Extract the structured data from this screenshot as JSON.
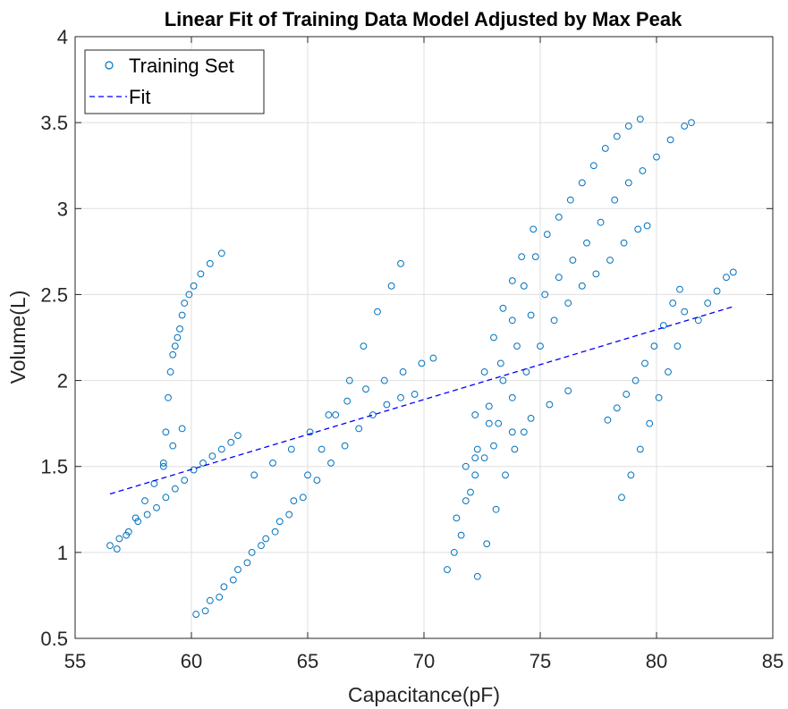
{
  "chart_data": {
    "type": "scatter",
    "title": "Linear Fit of Training Data Model Adjusted by Max Peak",
    "xlabel": "Capacitance(pF)",
    "ylabel": "Volume(L)",
    "xlim": [
      55,
      85
    ],
    "ylim": [
      0.5,
      4
    ],
    "xticks": [
      "55",
      "60",
      "65",
      "70",
      "75",
      "80",
      "85"
    ],
    "yticks": [
      "0.5",
      "1",
      "1.5",
      "2",
      "2.5",
      "3",
      "3.5",
      "4"
    ],
    "grid": true,
    "legend_position": "top-left",
    "colors": {
      "marker": "#0072BD",
      "fit": "#0000FF"
    },
    "series": [
      {
        "name": "Training Set",
        "style": "circle-markers",
        "x": [
          56.5,
          56.9,
          57.3,
          57.7,
          58.1,
          58.5,
          58.9,
          59.3,
          59.7,
          60.1,
          60.5,
          60.9,
          61.3,
          61.7,
          62.0,
          58.8,
          58.9,
          59.0,
          59.1,
          59.2,
          59.3,
          59.4,
          59.5,
          59.6,
          59.7,
          59.9,
          60.1,
          60.4,
          60.8,
          61.3,
          56.8,
          57.2,
          57.6,
          58.0,
          58.4,
          58.8,
          59.2,
          59.6,
          60.2,
          60.8,
          61.4,
          62.0,
          62.6,
          63.2,
          63.8,
          64.4,
          65.0,
          65.6,
          66.2,
          66.8,
          67.4,
          68.0,
          68.6,
          69.0,
          60.6,
          61.2,
          61.8,
          62.4,
          63.0,
          63.6,
          64.2,
          64.8,
          65.4,
          66.0,
          66.6,
          67.2,
          67.8,
          68.4,
          69.0,
          69.6,
          62.7,
          63.5,
          64.3,
          65.1,
          65.9,
          66.7,
          67.5,
          68.3,
          69.1,
          69.9,
          70.4,
          71.0,
          71.4,
          71.8,
          72.2,
          72.6,
          73.0,
          73.4,
          73.8,
          74.2,
          74.7,
          71.3,
          71.8,
          72.3,
          72.8,
          73.3,
          73.8,
          74.3,
          74.8,
          75.3,
          75.8,
          76.3,
          76.8,
          77.3,
          77.8,
          78.3,
          78.8,
          79.3,
          71.6,
          72.2,
          72.8,
          73.4,
          74.0,
          74.6,
          75.2,
          75.8,
          76.4,
          77.0,
          77.6,
          78.2,
          78.8,
          79.4,
          80.0,
          80.6,
          81.2,
          81.5,
          72.0,
          72.6,
          73.2,
          73.8,
          74.4,
          75.0,
          75.6,
          76.2,
          76.8,
          77.4,
          78.0,
          78.6,
          79.2,
          79.6,
          72.3,
          72.7,
          73.1,
          73.5,
          73.9,
          74.3,
          72.2,
          73.0,
          73.8,
          74.6,
          75.4,
          76.2,
          77.9,
          78.3,
          78.7,
          79.1,
          79.5,
          79.9,
          80.3,
          80.7,
          81.0,
          78.5,
          78.9,
          79.3,
          79.7,
          80.1,
          80.5,
          80.9,
          81.2,
          81.8,
          82.2,
          82.6,
          83.0,
          83.3
        ],
        "y": [
          1.04,
          1.08,
          1.12,
          1.18,
          1.22,
          1.26,
          1.32,
          1.37,
          1.42,
          1.48,
          1.52,
          1.56,
          1.6,
          1.64,
          1.68,
          1.5,
          1.7,
          1.9,
          2.05,
          2.15,
          2.2,
          2.25,
          2.3,
          2.38,
          2.45,
          2.5,
          2.55,
          2.62,
          2.68,
          2.74,
          1.02,
          1.1,
          1.2,
          1.3,
          1.4,
          1.52,
          1.62,
          1.72,
          0.64,
          0.72,
          0.8,
          0.9,
          1.0,
          1.08,
          1.18,
          1.3,
          1.45,
          1.6,
          1.8,
          2.0,
          2.2,
          2.4,
          2.55,
          2.68,
          0.66,
          0.74,
          0.84,
          0.94,
          1.04,
          1.12,
          1.22,
          1.32,
          1.42,
          1.52,
          1.62,
          1.72,
          1.8,
          1.86,
          1.9,
          1.92,
          1.45,
          1.52,
          1.6,
          1.7,
          1.8,
          1.88,
          1.95,
          2.0,
          2.05,
          2.1,
          2.13,
          0.9,
          1.2,
          1.5,
          1.8,
          2.05,
          2.25,
          2.42,
          2.58,
          2.72,
          2.88,
          1.0,
          1.3,
          1.6,
          1.85,
          2.1,
          2.35,
          2.55,
          2.72,
          2.85,
          2.95,
          3.05,
          3.15,
          3.25,
          3.35,
          3.42,
          3.48,
          3.52,
          1.1,
          1.45,
          1.75,
          2.0,
          2.2,
          2.38,
          2.5,
          2.6,
          2.7,
          2.8,
          2.92,
          3.05,
          3.15,
          3.22,
          3.3,
          3.4,
          3.48,
          3.5,
          1.35,
          1.55,
          1.75,
          1.9,
          2.05,
          2.2,
          2.35,
          2.45,
          2.55,
          2.62,
          2.7,
          2.8,
          2.88,
          2.9,
          0.86,
          1.05,
          1.25,
          1.45,
          1.6,
          1.7,
          1.55,
          1.62,
          1.7,
          1.78,
          1.86,
          1.94,
          1.77,
          1.84,
          1.92,
          2.0,
          2.1,
          2.2,
          2.32,
          2.45,
          2.53,
          1.32,
          1.45,
          1.6,
          1.75,
          1.9,
          2.05,
          2.2,
          2.4,
          2.35,
          2.45,
          2.52,
          2.6,
          2.63
        ]
      },
      {
        "name": "Fit",
        "style": "dashed-line",
        "x": [
          56.5,
          83.3
        ],
        "y": [
          1.34,
          2.43
        ]
      }
    ]
  }
}
